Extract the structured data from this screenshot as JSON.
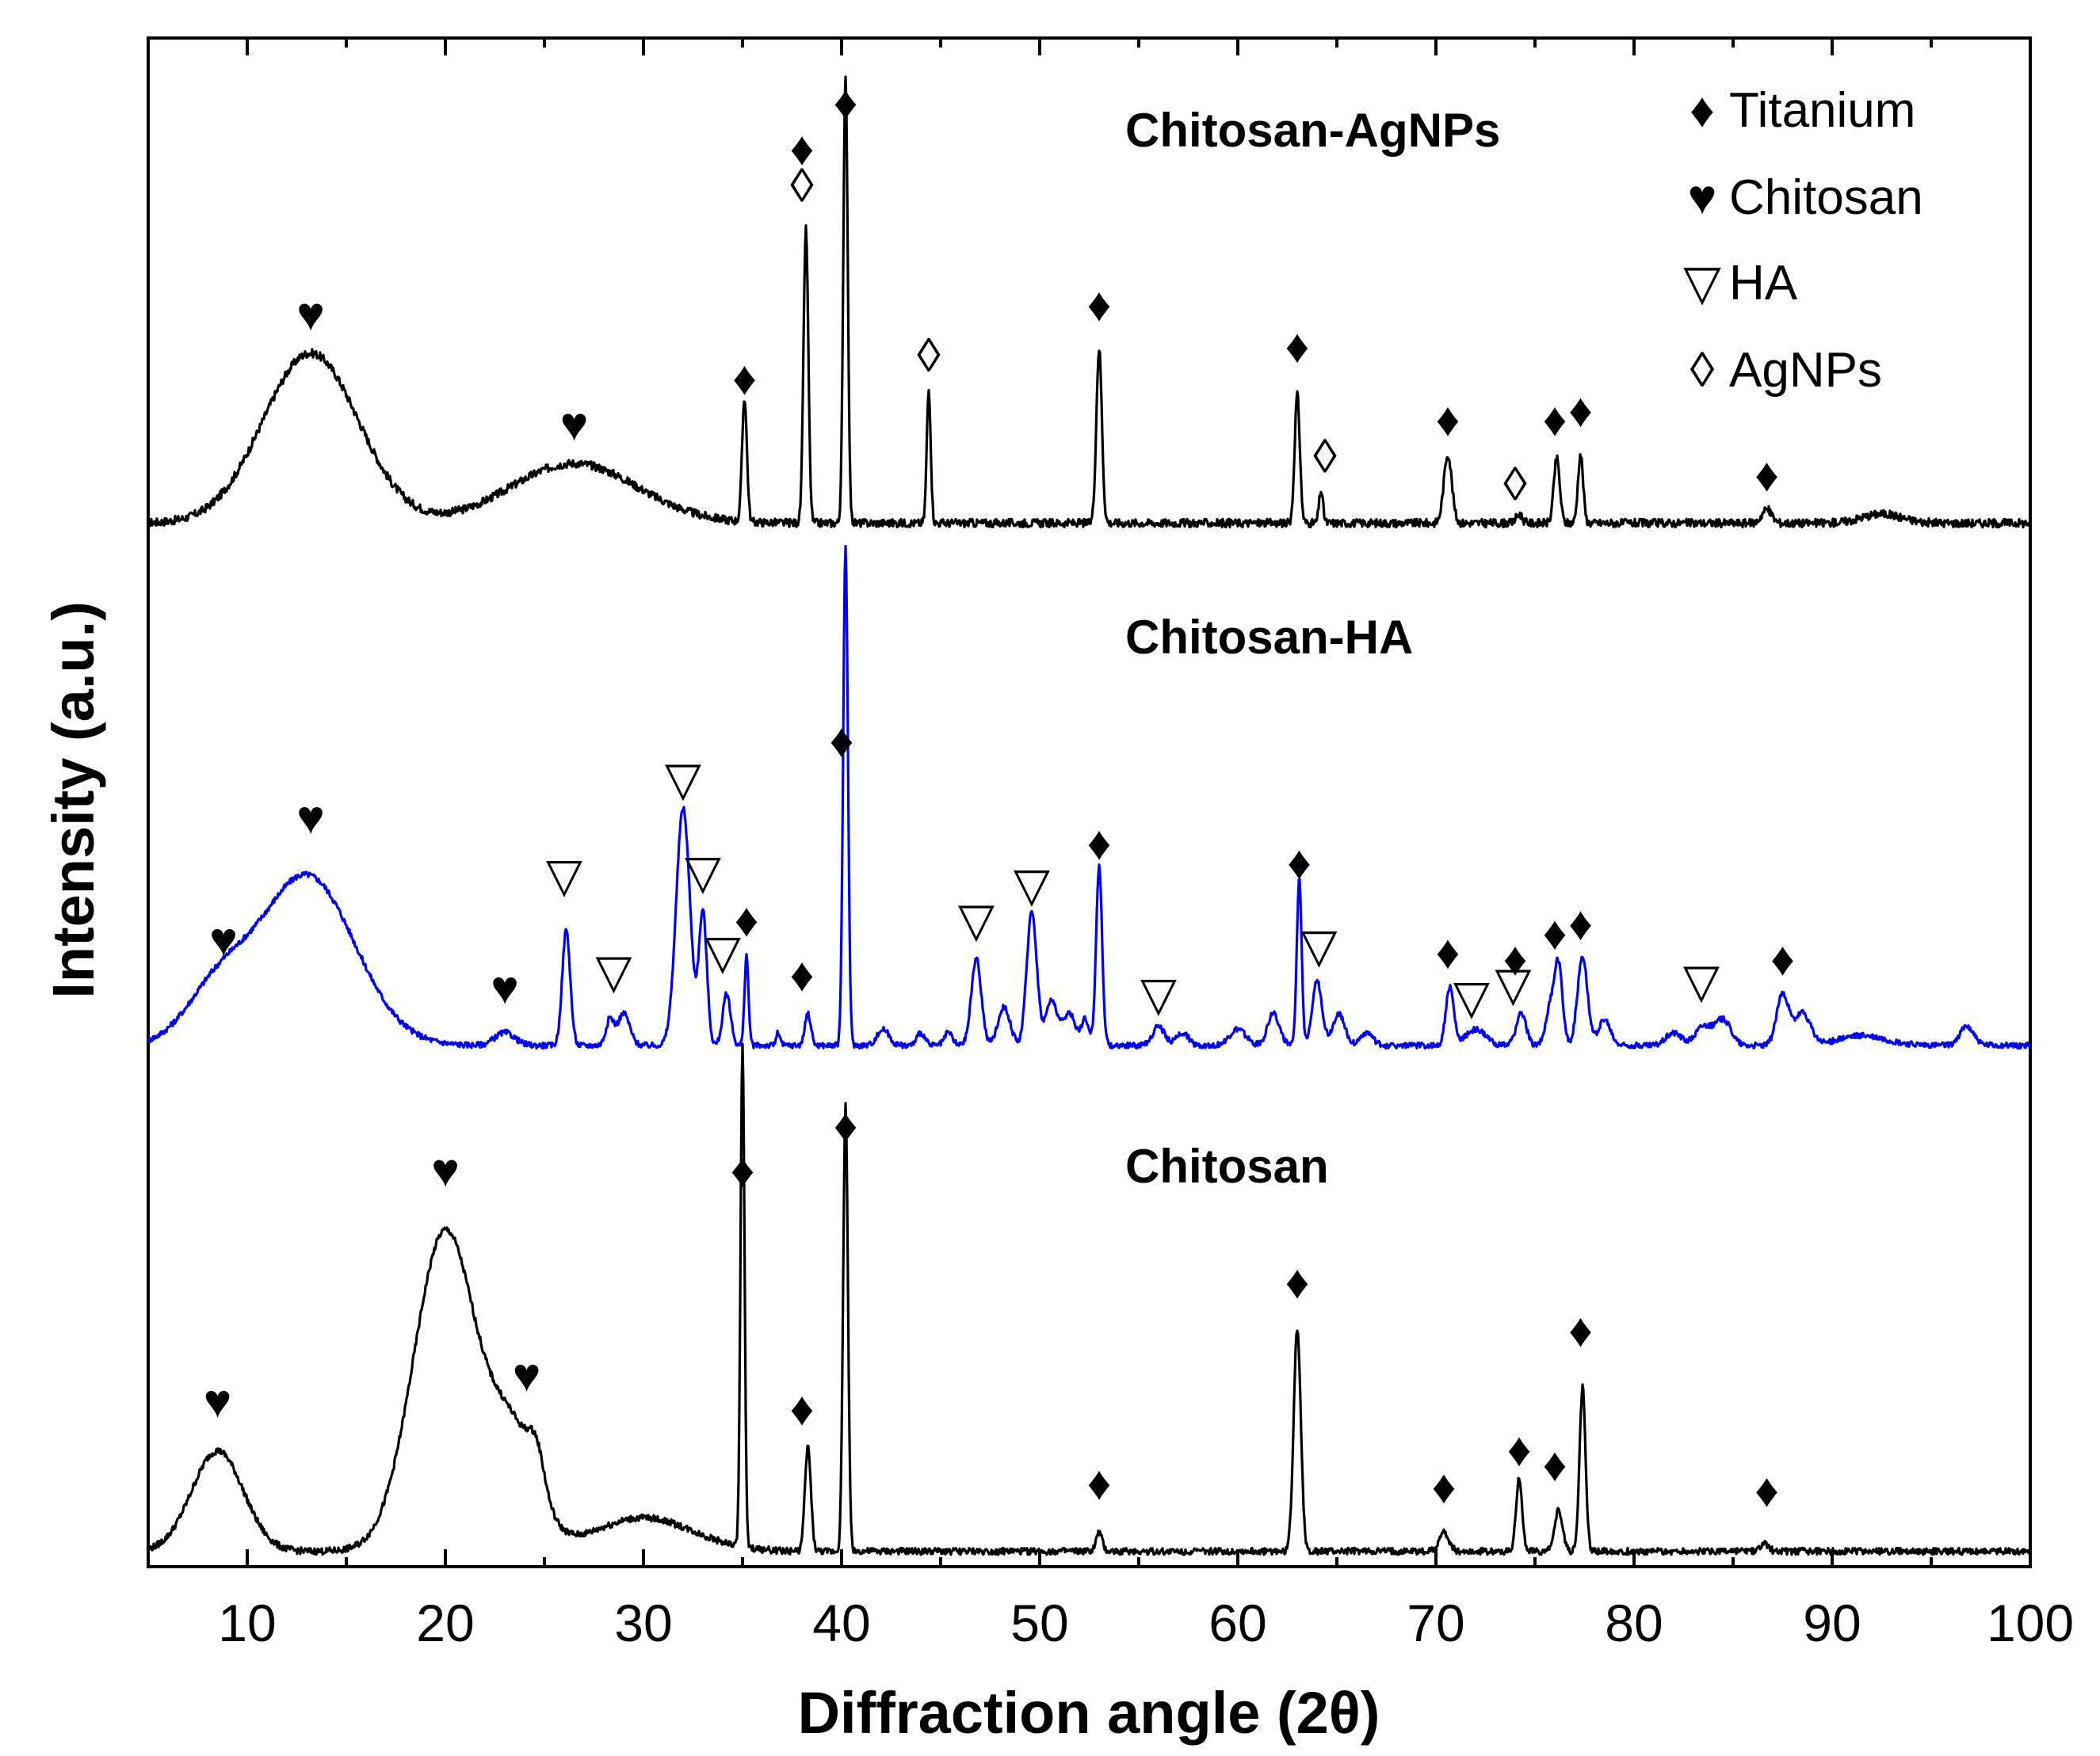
{
  "chart_data": {
    "type": "line",
    "title": "",
    "xlabel": "Diffraction angle (2θ)",
    "ylabel": "Intensity (a.u.)",
    "xlim": [
      5,
      100
    ],
    "x_ticks": [
      10,
      20,
      30,
      40,
      50,
      60,
      70,
      80,
      90,
      100
    ],
    "x_tick_labels": [
      "10",
      "20",
      "30",
      "40",
      "50",
      "60",
      "70",
      "80",
      "90",
      "100"
    ],
    "legend": [
      {
        "name": "Titanium",
        "symbol": "♦"
      },
      {
        "name": "Chitosan",
        "symbol": "♥"
      },
      {
        "name": "HA",
        "symbol": "▽"
      },
      {
        "name": "AgNPs",
        "symbol": "◊"
      }
    ],
    "series": [
      {
        "name": "Chitosan-AgNPs",
        "label": "Chitosan-AgNPs",
        "color": "#000000",
        "baseline": 0.02,
        "peaks": [
          [
            13.2,
            0.37,
            2.4
          ],
          [
            26.5,
            0.13,
            3.2
          ],
          [
            35.1,
            0.27,
            0.12
          ],
          [
            38.2,
            0.64,
            0.12
          ],
          [
            40.2,
            0.98,
            0.11
          ],
          [
            44.4,
            0.29,
            0.1
          ],
          [
            53.0,
            0.38,
            0.14
          ],
          [
            63.0,
            0.28,
            0.13
          ],
          [
            64.2,
            0.07,
            0.1
          ],
          [
            70.6,
            0.15,
            0.2
          ],
          [
            74.2,
            0.02,
            0.15
          ],
          [
            76.1,
            0.14,
            0.15
          ],
          [
            77.3,
            0.15,
            0.13
          ],
          [
            86.7,
            0.03,
            0.25
          ],
          [
            92.5,
            0.02,
            1.0
          ]
        ],
        "markers": [
          {
            "x": 13.2,
            "y": 0.44,
            "s": "♥"
          },
          {
            "x": 26.5,
            "y": 0.2,
            "s": "♥"
          },
          {
            "x": 35.1,
            "y": 0.3,
            "s": "♦"
          },
          {
            "x": 38.0,
            "y": 0.8,
            "s": "♦"
          },
          {
            "x": 38.0,
            "y": 0.72,
            "s": "◊"
          },
          {
            "x": 40.2,
            "y": 0.9,
            "s": "♦"
          },
          {
            "x": 44.4,
            "y": 0.35,
            "s": "◊"
          },
          {
            "x": 53.0,
            "y": 0.46,
            "s": "♦"
          },
          {
            "x": 63.0,
            "y": 0.37,
            "s": "♦"
          },
          {
            "x": 64.4,
            "y": 0.13,
            "s": "◊"
          },
          {
            "x": 70.6,
            "y": 0.21,
            "s": "♦"
          },
          {
            "x": 74.0,
            "y": 0.07,
            "s": "◊"
          },
          {
            "x": 76.0,
            "y": 0.21,
            "s": "♦"
          },
          {
            "x": 77.3,
            "y": 0.23,
            "s": "♦"
          },
          {
            "x": 86.7,
            "y": 0.09,
            "s": "♦"
          }
        ]
      },
      {
        "name": "Chitosan-HA",
        "label": "Chitosan-HA",
        "color": "#0000ff",
        "baseline": 0.02,
        "peaks": [
          [
            8.5,
            0.16,
            1.6
          ],
          [
            13.0,
            0.53,
            2.4
          ],
          [
            23.0,
            0.04,
            0.5
          ],
          [
            26.1,
            0.36,
            0.2
          ],
          [
            28.3,
            0.08,
            0.2
          ],
          [
            29.0,
            0.1,
            0.3
          ],
          [
            32.0,
            0.74,
            0.35
          ],
          [
            33.0,
            0.41,
            0.2
          ],
          [
            34.2,
            0.16,
            0.2
          ],
          [
            35.2,
            0.28,
            0.1
          ],
          [
            36.8,
            0.04,
            0.1
          ],
          [
            38.3,
            0.1,
            0.15
          ],
          [
            40.2,
            1.55,
            0.12
          ],
          [
            42.1,
            0.05,
            0.3
          ],
          [
            44.0,
            0.04,
            0.2
          ],
          [
            45.4,
            0.04,
            0.2
          ],
          [
            46.8,
            0.27,
            0.25
          ],
          [
            48.2,
            0.12,
            0.3
          ],
          [
            49.6,
            0.42,
            0.25
          ],
          [
            50.6,
            0.14,
            0.3
          ],
          [
            51.5,
            0.1,
            0.3
          ],
          [
            52.3,
            0.08,
            0.2
          ],
          [
            53.0,
            0.56,
            0.15
          ],
          [
            56.0,
            0.06,
            0.3
          ],
          [
            57.2,
            0.04,
            0.3
          ],
          [
            60.0,
            0.05,
            0.4
          ],
          [
            61.8,
            0.1,
            0.3
          ],
          [
            63.1,
            0.52,
            0.12
          ],
          [
            64.0,
            0.2,
            0.25
          ],
          [
            65.1,
            0.1,
            0.3
          ],
          [
            66.5,
            0.04,
            0.3
          ],
          [
            70.7,
            0.18,
            0.2
          ],
          [
            72.0,
            0.05,
            0.5
          ],
          [
            74.3,
            0.1,
            0.25
          ],
          [
            75.8,
            0.12,
            0.25
          ],
          [
            76.2,
            0.23,
            0.2
          ],
          [
            77.4,
            0.28,
            0.25
          ],
          [
            78.5,
            0.08,
            0.3
          ],
          [
            82.0,
            0.04,
            0.4
          ],
          [
            83.5,
            0.06,
            0.4
          ],
          [
            84.5,
            0.08,
            0.4
          ],
          [
            87.5,
            0.16,
            0.3
          ],
          [
            88.5,
            0.1,
            0.4
          ],
          [
            91.5,
            0.03,
            1.2
          ],
          [
            96.8,
            0.06,
            0.35
          ]
        ],
        "markers": [
          {
            "x": 8.8,
            "y": 0.3,
            "s": "♥"
          },
          {
            "x": 13.2,
            "y": 0.68,
            "s": "♥"
          },
          {
            "x": 23.0,
            "y": 0.15,
            "s": "♥"
          },
          {
            "x": 26.0,
            "y": 0.5,
            "s": "▽"
          },
          {
            "x": 28.5,
            "y": 0.2,
            "s": "▽"
          },
          {
            "x": 32.0,
            "y": 0.8,
            "s": "▽"
          },
          {
            "x": 33.0,
            "y": 0.51,
            "s": "▽"
          },
          {
            "x": 34.0,
            "y": 0.26,
            "s": "▽"
          },
          {
            "x": 35.2,
            "y": 0.36,
            "s": "♦"
          },
          {
            "x": 38.0,
            "y": 0.19,
            "s": "♦"
          },
          {
            "x": 40.0,
            "y": 0.92,
            "s": "♦"
          },
          {
            "x": 46.8,
            "y": 0.36,
            "s": "▽"
          },
          {
            "x": 49.6,
            "y": 0.47,
            "s": "▽"
          },
          {
            "x": 53.0,
            "y": 0.6,
            "s": "♦"
          },
          {
            "x": 56.0,
            "y": 0.13,
            "s": "▽"
          },
          {
            "x": 63.1,
            "y": 0.54,
            "s": "♦"
          },
          {
            "x": 64.1,
            "y": 0.28,
            "s": "▽"
          },
          {
            "x": 70.6,
            "y": 0.26,
            "s": "♦"
          },
          {
            "x": 71.8,
            "y": 0.12,
            "s": "▽"
          },
          {
            "x": 74.0,
            "y": 0.24,
            "s": "♦"
          },
          {
            "x": 73.9,
            "y": 0.16,
            "s": "▽"
          },
          {
            "x": 76.0,
            "y": 0.32,
            "s": "♦"
          },
          {
            "x": 77.3,
            "y": 0.35,
            "s": "♦"
          },
          {
            "x": 83.4,
            "y": 0.17,
            "s": "▽"
          },
          {
            "x": 87.5,
            "y": 0.24,
            "s": "♦"
          }
        ]
      },
      {
        "name": "Chitosan",
        "label": "Chitosan",
        "color": "#000000",
        "baseline": 0.02,
        "peaks": [
          [
            8.5,
            0.27,
            1.3
          ],
          [
            20.0,
            0.86,
            1.6
          ],
          [
            23.5,
            0.28,
            1.2
          ],
          [
            24.6,
            0.1,
            0.4
          ],
          [
            30.0,
            0.09,
            2.5
          ],
          [
            35.0,
            1.35,
            0.1
          ],
          [
            38.3,
            0.28,
            0.15
          ],
          [
            40.2,
            1.2,
            0.12
          ],
          [
            53.0,
            0.05,
            0.15
          ],
          [
            63.0,
            0.6,
            0.18
          ],
          [
            70.4,
            0.05,
            0.25
          ],
          [
            74.2,
            0.2,
            0.15
          ],
          [
            76.2,
            0.11,
            0.2
          ],
          [
            77.4,
            0.44,
            0.15
          ],
          [
            86.6,
            0.02,
            0.2
          ]
        ],
        "markers": [
          {
            "x": 8.5,
            "y": 0.38,
            "s": "♥"
          },
          {
            "x": 20.0,
            "y": 1.0,
            "s": "♥"
          },
          {
            "x": 24.1,
            "y": 0.45,
            "s": "♥"
          },
          {
            "x": 35.0,
            "y": 1.0,
            "s": "♦"
          },
          {
            "x": 38.0,
            "y": 0.36,
            "s": "♦"
          },
          {
            "x": 40.2,
            "y": 1.12,
            "s": "♦"
          },
          {
            "x": 53.0,
            "y": 0.16,
            "s": "♦"
          },
          {
            "x": 63.0,
            "y": 0.7,
            "s": "♦"
          },
          {
            "x": 70.4,
            "y": 0.15,
            "s": "♦"
          },
          {
            "x": 74.2,
            "y": 0.25,
            "s": "♦"
          },
          {
            "x": 76.0,
            "y": 0.21,
            "s": "♦"
          },
          {
            "x": 77.3,
            "y": 0.57,
            "s": "♦"
          },
          {
            "x": 86.7,
            "y": 0.14,
            "s": "♦"
          }
        ]
      }
    ]
  }
}
